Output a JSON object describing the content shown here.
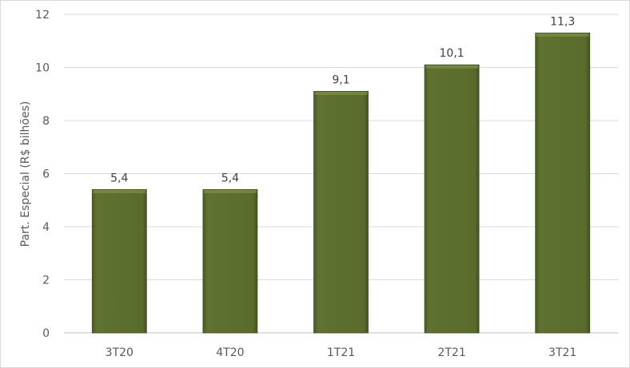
{
  "chart_data": {
    "type": "bar",
    "categories": [
      "3T20",
      "4T20",
      "1T21",
      "2T21",
      "3T21"
    ],
    "values": [
      5.4,
      5.4,
      9.1,
      10.1,
      11.3
    ],
    "data_labels": [
      "5,4",
      "5,4",
      "9,1",
      "10,1",
      "11,3"
    ],
    "title": "",
    "xlabel": "",
    "ylabel": "Part. Especial (R$ bilhões)",
    "ylim": [
      0,
      12
    ],
    "yticks": [
      0,
      2,
      4,
      6,
      8,
      10,
      12
    ],
    "grid": true,
    "legend": "none",
    "bar_color": "#5a6b2c"
  }
}
